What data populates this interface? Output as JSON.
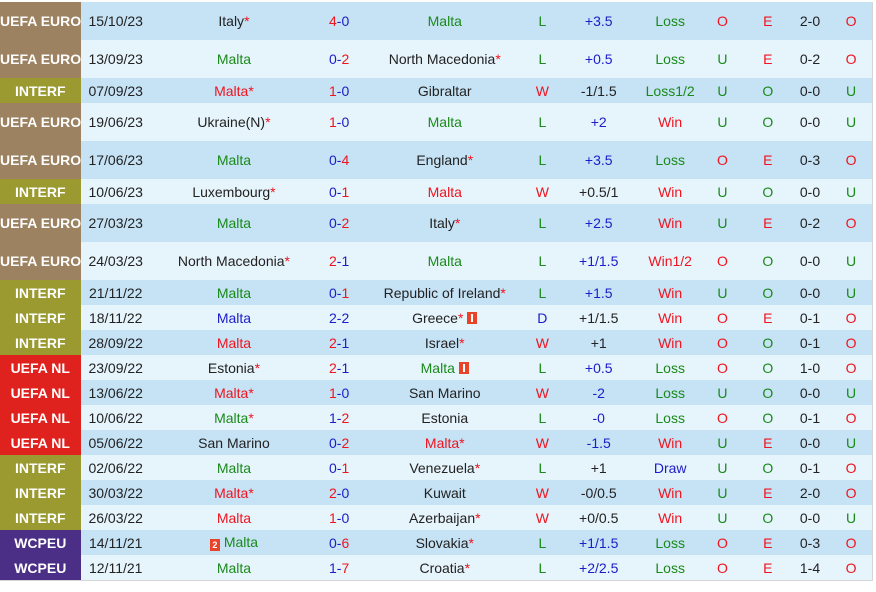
{
  "colors": {
    "row_odd": "#c6e2f5",
    "row_even": "#e6f4fc",
    "league_euro": "#9c8260",
    "league_interf": "#9a9a30",
    "league_nl": "#e0221f",
    "league_wc": "#4b2f87",
    "red": "#f0141e",
    "green": "#1a8a1a",
    "blue": "#1c1cc8"
  },
  "matches": [
    {
      "league": "UEFA EURO",
      "league_type": "euro",
      "date": "15/10/23",
      "home": "Italy",
      "home_star": true,
      "home_color": "black",
      "score_h": "4",
      "score_a": "0",
      "score_h_color": "red",
      "score_a_color": "blue",
      "away": "Malta",
      "away_star": false,
      "away_color": "green",
      "result": "L",
      "result_color": "green",
      "handicap": "+3.5",
      "handicap_color": "blue",
      "ah_result": "Loss",
      "ah_color": "green",
      "ou": "O",
      "ou_color": "red",
      "oe": "E",
      "oe_color": "red",
      "ht": "2-0",
      "ht_ou": "O",
      "ht_ou_color": "red"
    },
    {
      "league": "UEFA EURO",
      "league_type": "euro",
      "date": "13/09/23",
      "home": "Malta",
      "home_star": false,
      "home_color": "green",
      "score_h": "0",
      "score_a": "2",
      "score_h_color": "blue",
      "score_a_color": "red",
      "away": "North Macedonia",
      "away_star": true,
      "away_color": "black",
      "result": "L",
      "result_color": "green",
      "handicap": "+0.5",
      "handicap_color": "blue",
      "ah_result": "Loss",
      "ah_color": "green",
      "ou": "U",
      "ou_color": "green",
      "oe": "E",
      "oe_color": "red",
      "ht": "0-2",
      "ht_ou": "O",
      "ht_ou_color": "red"
    },
    {
      "league": "INTERF",
      "league_type": "interf",
      "date": "07/09/23",
      "home": "Malta",
      "home_star": true,
      "home_color": "red",
      "score_h": "1",
      "score_a": "0",
      "score_h_color": "red",
      "score_a_color": "blue",
      "away": "Gibraltar",
      "away_star": false,
      "away_color": "black",
      "result": "W",
      "result_color": "red",
      "handicap": "-1/1.5",
      "handicap_color": "black",
      "ah_result": "Loss1/2",
      "ah_color": "green",
      "ou": "U",
      "ou_color": "green",
      "oe": "O",
      "oe_color": "green",
      "ht": "0-0",
      "ht_ou": "U",
      "ht_ou_color": "green"
    },
    {
      "league": "UEFA EURO",
      "league_type": "euro",
      "date": "19/06/23",
      "home": "Ukraine(N)",
      "home_star": true,
      "home_color": "black",
      "score_h": "1",
      "score_a": "0",
      "score_h_color": "red",
      "score_a_color": "blue",
      "away": "Malta",
      "away_star": false,
      "away_color": "green",
      "result": "L",
      "result_color": "green",
      "handicap": "+2",
      "handicap_color": "blue",
      "ah_result": "Win",
      "ah_color": "red",
      "ou": "U",
      "ou_color": "green",
      "oe": "O",
      "oe_color": "green",
      "ht": "0-0",
      "ht_ou": "U",
      "ht_ou_color": "green"
    },
    {
      "league": "UEFA EURO",
      "league_type": "euro",
      "date": "17/06/23",
      "home": "Malta",
      "home_star": false,
      "home_color": "green",
      "score_h": "0",
      "score_a": "4",
      "score_h_color": "blue",
      "score_a_color": "red",
      "away": "England",
      "away_star": true,
      "away_color": "black",
      "result": "L",
      "result_color": "green",
      "handicap": "+3.5",
      "handicap_color": "blue",
      "ah_result": "Loss",
      "ah_color": "green",
      "ou": "O",
      "ou_color": "red",
      "oe": "E",
      "oe_color": "red",
      "ht": "0-3",
      "ht_ou": "O",
      "ht_ou_color": "red"
    },
    {
      "league": "INTERF",
      "league_type": "interf",
      "date": "10/06/23",
      "home": "Luxembourg",
      "home_star": true,
      "home_color": "black",
      "score_h": "0",
      "score_a": "1",
      "score_h_color": "blue",
      "score_a_color": "red",
      "away": "Malta",
      "away_star": false,
      "away_color": "red",
      "result": "W",
      "result_color": "red",
      "handicap": "+0.5/1",
      "handicap_color": "black",
      "ah_result": "Win",
      "ah_color": "red",
      "ou": "U",
      "ou_color": "green",
      "oe": "O",
      "oe_color": "green",
      "ht": "0-0",
      "ht_ou": "U",
      "ht_ou_color": "green"
    },
    {
      "league": "UEFA EURO",
      "league_type": "euro",
      "date": "27/03/23",
      "home": "Malta",
      "home_star": false,
      "home_color": "green",
      "score_h": "0",
      "score_a": "2",
      "score_h_color": "blue",
      "score_a_color": "red",
      "away": "Italy",
      "away_star": true,
      "away_color": "black",
      "result": "L",
      "result_color": "green",
      "handicap": "+2.5",
      "handicap_color": "blue",
      "ah_result": "Win",
      "ah_color": "red",
      "ou": "U",
      "ou_color": "green",
      "oe": "E",
      "oe_color": "red",
      "ht": "0-2",
      "ht_ou": "O",
      "ht_ou_color": "red"
    },
    {
      "league": "UEFA EURO",
      "league_type": "euro",
      "date": "24/03/23",
      "home": "North Macedonia",
      "home_star": true,
      "home_color": "black",
      "score_h": "2",
      "score_a": "1",
      "score_h_color": "red",
      "score_a_color": "blue",
      "away": "Malta",
      "away_star": false,
      "away_color": "green",
      "result": "L",
      "result_color": "green",
      "handicap": "+1/1.5",
      "handicap_color": "blue",
      "ah_result": "Win1/2",
      "ah_color": "red",
      "ou": "O",
      "ou_color": "red",
      "oe": "O",
      "oe_color": "green",
      "ht": "0-0",
      "ht_ou": "U",
      "ht_ou_color": "green"
    },
    {
      "league": "INTERF",
      "league_type": "interf",
      "date": "21/11/22",
      "home": "Malta",
      "home_star": false,
      "home_color": "green",
      "score_h": "0",
      "score_a": "1",
      "score_h_color": "blue",
      "score_a_color": "red",
      "away": "Republic of Ireland",
      "away_star": true,
      "away_color": "black",
      "result": "L",
      "result_color": "green",
      "handicap": "+1.5",
      "handicap_color": "blue",
      "ah_result": "Win",
      "ah_color": "red",
      "ou": "U",
      "ou_color": "green",
      "oe": "O",
      "oe_color": "green",
      "ht": "0-0",
      "ht_ou": "U",
      "ht_ou_color": "green"
    },
    {
      "league": "INTERF",
      "league_type": "interf",
      "date": "18/11/22",
      "home": "Malta",
      "home_star": false,
      "home_color": "blue",
      "score_h": "2",
      "score_a": "2",
      "score_h_color": "blue",
      "score_a_color": "blue",
      "away": "Greece",
      "away_star": true,
      "away_card": "1",
      "away_color": "black",
      "result": "D",
      "result_color": "blue",
      "handicap": "+1/1.5",
      "handicap_color": "black",
      "ah_result": "Win",
      "ah_color": "red",
      "ou": "O",
      "ou_color": "red",
      "oe": "E",
      "oe_color": "red",
      "ht": "0-1",
      "ht_ou": "O",
      "ht_ou_color": "red"
    },
    {
      "league": "INTERF",
      "league_type": "interf",
      "date": "28/09/22",
      "home": "Malta",
      "home_star": false,
      "home_color": "red",
      "score_h": "2",
      "score_a": "1",
      "score_h_color": "red",
      "score_a_color": "blue",
      "away": "Israel",
      "away_star": true,
      "away_color": "black",
      "result": "W",
      "result_color": "red",
      "handicap": "+1",
      "handicap_color": "black",
      "ah_result": "Win",
      "ah_color": "red",
      "ou": "O",
      "ou_color": "red",
      "oe": "O",
      "oe_color": "green",
      "ht": "0-1",
      "ht_ou": "O",
      "ht_ou_color": "red"
    },
    {
      "league": "UEFA NL",
      "league_type": "nl",
      "date": "23/09/22",
      "home": "Estonia",
      "home_star": true,
      "home_color": "black",
      "score_h": "2",
      "score_a": "1",
      "score_h_color": "red",
      "score_a_color": "blue",
      "away": "Malta",
      "away_star": false,
      "away_card": "1",
      "away_color": "green",
      "result": "L",
      "result_color": "green",
      "handicap": "+0.5",
      "handicap_color": "blue",
      "ah_result": "Loss",
      "ah_color": "green",
      "ou": "O",
      "ou_color": "red",
      "oe": "O",
      "oe_color": "green",
      "ht": "1-0",
      "ht_ou": "O",
      "ht_ou_color": "red"
    },
    {
      "league": "UEFA NL",
      "league_type": "nl",
      "date": "13/06/22",
      "home": "Malta",
      "home_star": true,
      "home_color": "red",
      "score_h": "1",
      "score_a": "0",
      "score_h_color": "red",
      "score_a_color": "blue",
      "away": "San Marino",
      "away_star": false,
      "away_color": "black",
      "result": "W",
      "result_color": "red",
      "handicap": "-2",
      "handicap_color": "blue",
      "ah_result": "Loss",
      "ah_color": "green",
      "ou": "U",
      "ou_color": "green",
      "oe": "O",
      "oe_color": "green",
      "ht": "0-0",
      "ht_ou": "U",
      "ht_ou_color": "green"
    },
    {
      "league": "UEFA NL",
      "league_type": "nl",
      "date": "10/06/22",
      "home": "Malta",
      "home_star": true,
      "home_color": "green",
      "score_h": "1",
      "score_a": "2",
      "score_h_color": "blue",
      "score_a_color": "red",
      "away": "Estonia",
      "away_star": false,
      "away_color": "black",
      "result": "L",
      "result_color": "green",
      "handicap": "-0",
      "handicap_color": "blue",
      "ah_result": "Loss",
      "ah_color": "green",
      "ou": "O",
      "ou_color": "red",
      "oe": "O",
      "oe_color": "green",
      "ht": "0-1",
      "ht_ou": "O",
      "ht_ou_color": "red"
    },
    {
      "league": "UEFA NL",
      "league_type": "nl",
      "date": "05/06/22",
      "home": "San Marino",
      "home_star": false,
      "home_color": "black",
      "score_h": "0",
      "score_a": "2",
      "score_h_color": "blue",
      "score_a_color": "red",
      "away": "Malta",
      "away_star": true,
      "away_color": "red",
      "result": "W",
      "result_color": "red",
      "handicap": "-1.5",
      "handicap_color": "blue",
      "ah_result": "Win",
      "ah_color": "red",
      "ou": "U",
      "ou_color": "green",
      "oe": "E",
      "oe_color": "red",
      "ht": "0-0",
      "ht_ou": "U",
      "ht_ou_color": "green"
    },
    {
      "league": "INTERF",
      "league_type": "interf",
      "date": "02/06/22",
      "home": "Malta",
      "home_star": false,
      "home_color": "green",
      "score_h": "0",
      "score_a": "1",
      "score_h_color": "blue",
      "score_a_color": "red",
      "away": "Venezuela",
      "away_star": true,
      "away_color": "black",
      "result": "L",
      "result_color": "green",
      "handicap": "+1",
      "handicap_color": "black",
      "ah_result": "Draw",
      "ah_color": "blue",
      "ou": "U",
      "ou_color": "green",
      "oe": "O",
      "oe_color": "green",
      "ht": "0-1",
      "ht_ou": "O",
      "ht_ou_color": "red"
    },
    {
      "league": "INTERF",
      "league_type": "interf",
      "date": "30/03/22",
      "home": "Malta",
      "home_star": true,
      "home_color": "red",
      "score_h": "2",
      "score_a": "0",
      "score_h_color": "red",
      "score_a_color": "blue",
      "away": "Kuwait",
      "away_star": false,
      "away_color": "black",
      "result": "W",
      "result_color": "red",
      "handicap": "-0/0.5",
      "handicap_color": "black",
      "ah_result": "Win",
      "ah_color": "red",
      "ou": "U",
      "ou_color": "green",
      "oe": "E",
      "oe_color": "red",
      "ht": "2-0",
      "ht_ou": "O",
      "ht_ou_color": "red"
    },
    {
      "league": "INTERF",
      "league_type": "interf",
      "date": "26/03/22",
      "home": "Malta",
      "home_star": false,
      "home_color": "red",
      "score_h": "1",
      "score_a": "0",
      "score_h_color": "red",
      "score_a_color": "blue",
      "away": "Azerbaijan",
      "away_star": true,
      "away_color": "black",
      "result": "W",
      "result_color": "red",
      "handicap": "+0/0.5",
      "handicap_color": "black",
      "ah_result": "Win",
      "ah_color": "red",
      "ou": "U",
      "ou_color": "green",
      "oe": "O",
      "oe_color": "green",
      "ht": "0-0",
      "ht_ou": "U",
      "ht_ou_color": "green"
    },
    {
      "league": "WCPEU",
      "league_type": "wc",
      "date": "14/11/21",
      "home": "Malta",
      "home_star": false,
      "home_card": "2",
      "home_color": "green",
      "score_h": "0",
      "score_a": "6",
      "score_h_color": "blue",
      "score_a_color": "red",
      "away": "Slovakia",
      "away_star": true,
      "away_color": "black",
      "result": "L",
      "result_color": "green",
      "handicap": "+1/1.5",
      "handicap_color": "blue",
      "ah_result": "Loss",
      "ah_color": "green",
      "ou": "O",
      "ou_color": "red",
      "oe": "E",
      "oe_color": "red",
      "ht": "0-3",
      "ht_ou": "O",
      "ht_ou_color": "red"
    },
    {
      "league": "WCPEU",
      "league_type": "wc",
      "date": "12/11/21",
      "home": "Malta",
      "home_star": false,
      "home_color": "green",
      "score_h": "1",
      "score_a": "7",
      "score_h_color": "blue",
      "score_a_color": "red",
      "away": "Croatia",
      "away_star": true,
      "away_color": "black",
      "result": "L",
      "result_color": "green",
      "handicap": "+2/2.5",
      "handicap_color": "blue",
      "ah_result": "Loss",
      "ah_color": "green",
      "ou": "O",
      "ou_color": "red",
      "oe": "E",
      "oe_color": "red",
      "ht": "1-4",
      "ht_ou": "O",
      "ht_ou_color": "red"
    }
  ]
}
